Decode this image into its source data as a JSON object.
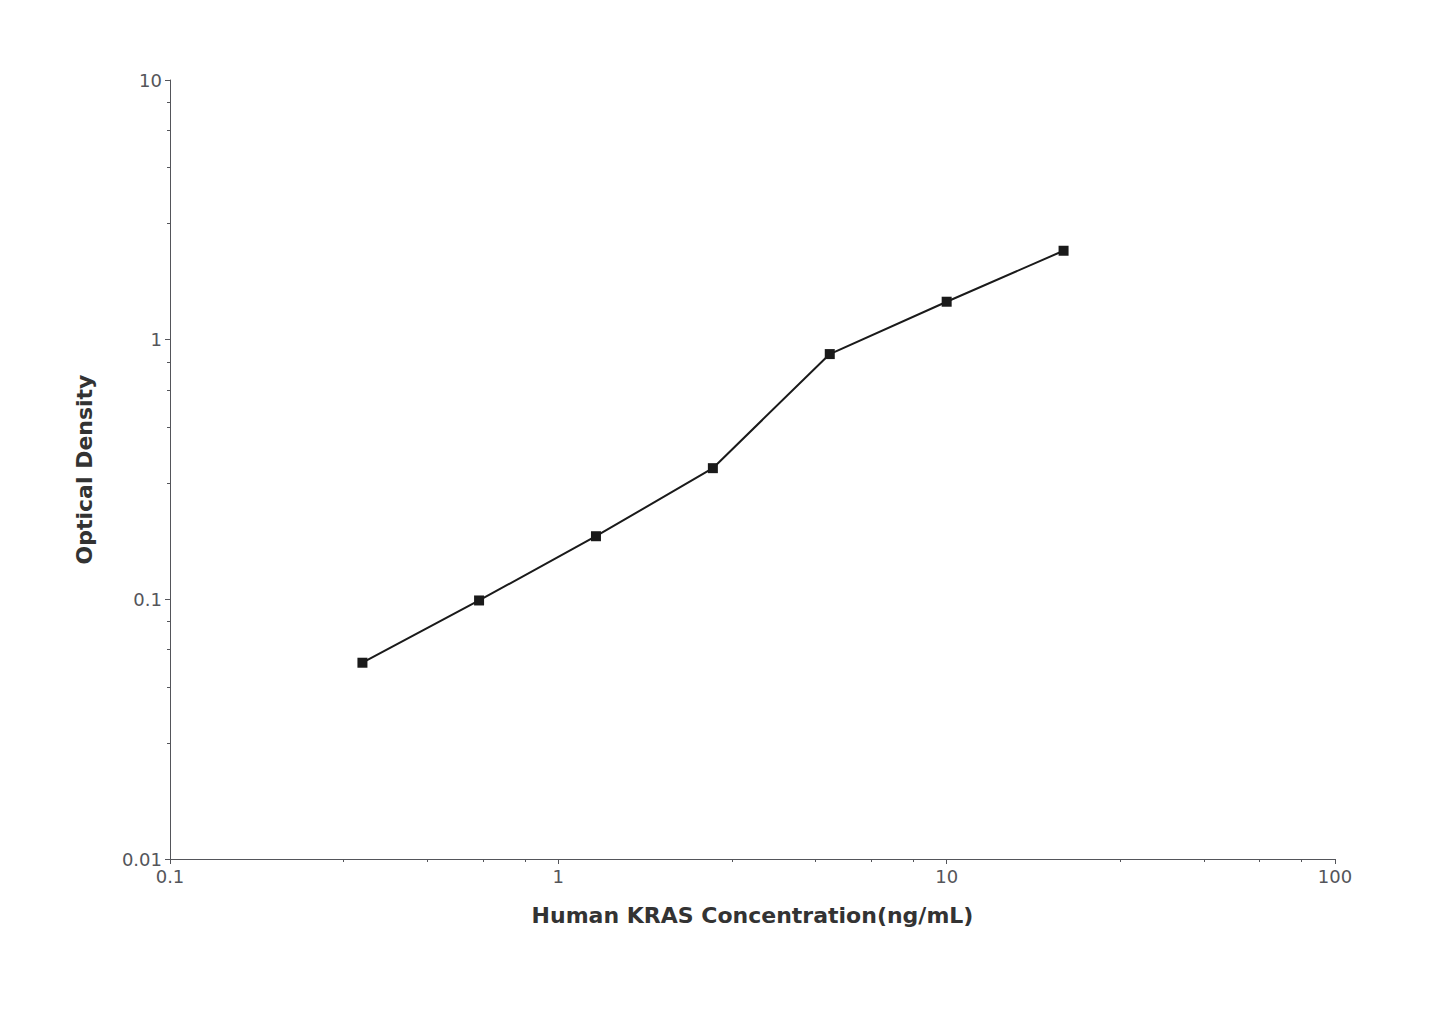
{
  "chart_data": {
    "type": "line",
    "x": [
      0.313,
      0.625,
      1.25,
      2.5,
      5.0,
      10.0,
      20.0
    ],
    "values": [
      0.057,
      0.099,
      0.175,
      0.32,
      0.88,
      1.4,
      2.2
    ],
    "xlabel": "Human KRAS Concentration(ng/mL)",
    "ylabel": "Optical Density",
    "xlim": [
      0.1,
      100
    ],
    "ylim": [
      0.01,
      10
    ],
    "xticks": [
      0.1,
      1,
      10,
      100
    ],
    "yticks": [
      0.01,
      0.1,
      1,
      10
    ],
    "log": true,
    "grid": false,
    "color": "#1a1a1a",
    "marker": "square"
  }
}
